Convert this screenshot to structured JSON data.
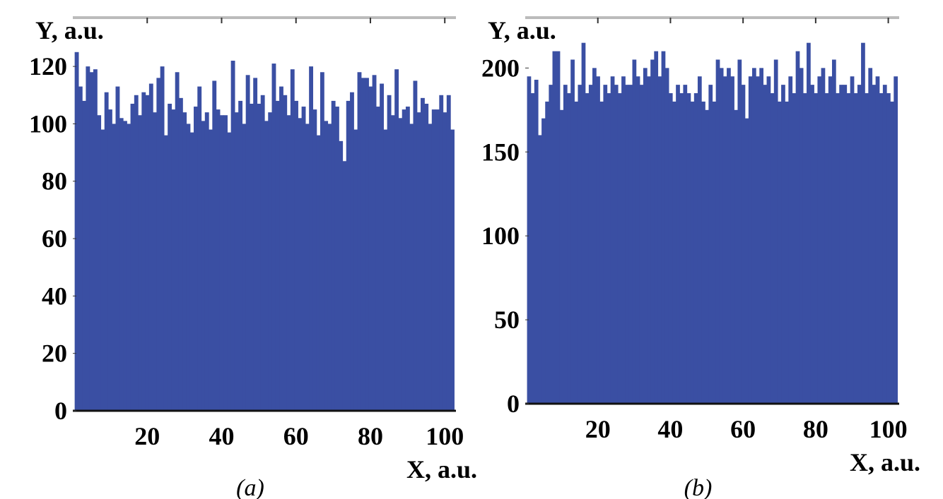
{
  "chart_data": [
    {
      "type": "bar",
      "caption": "(a)",
      "x_label": "X, a.u.",
      "y_label": "Y, a.u.",
      "color": "#3a4fa3",
      "x": [
        1,
        2,
        3,
        4,
        5,
        6,
        7,
        8,
        9,
        10,
        11,
        12,
        13,
        14,
        15,
        16,
        17,
        18,
        19,
        20,
        21,
        22,
        23,
        24,
        25,
        26,
        27,
        28,
        29,
        30,
        31,
        32,
        33,
        34,
        35,
        36,
        37,
        38,
        39,
        40,
        41,
        42,
        43,
        44,
        45,
        46,
        47,
        48,
        49,
        50,
        51,
        52,
        53,
        54,
        55,
        56,
        57,
        58,
        59,
        60,
        61,
        62,
        63,
        64,
        65,
        66,
        67,
        68,
        69,
        70,
        71,
        72,
        73,
        74,
        75,
        76,
        77,
        78,
        79,
        80,
        81,
        82,
        83,
        84,
        85,
        86,
        87,
        88,
        89,
        90,
        91,
        92,
        93,
        94,
        95,
        96,
        97,
        98,
        99,
        100,
        101,
        102
      ],
      "values": [
        125,
        113,
        108,
        120,
        118,
        119,
        103,
        98,
        111,
        105,
        100,
        113,
        102,
        101,
        100,
        107,
        110,
        103,
        111,
        110,
        114,
        104,
        116,
        120,
        96,
        107,
        105,
        118,
        109,
        104,
        100,
        97,
        106,
        113,
        101,
        104,
        98,
        115,
        105,
        103,
        103,
        97,
        122,
        104,
        108,
        100,
        117,
        107,
        116,
        107,
        110,
        101,
        104,
        121,
        108,
        113,
        110,
        103,
        119,
        108,
        102,
        106,
        100,
        120,
        105,
        96,
        118,
        101,
        100,
        108,
        106,
        94,
        87,
        108,
        111,
        98,
        118,
        116,
        116,
        113,
        117,
        106,
        114,
        98,
        110,
        103,
        119,
        102,
        105,
        106,
        100,
        115,
        104,
        109,
        107,
        100,
        105,
        105,
        110,
        104,
        110,
        98
      ],
      "xlim": [
        0,
        103
      ],
      "ylim": [
        0,
        137
      ],
      "xticks": [
        20,
        40,
        60,
        80,
        100
      ],
      "yticks": [
        0,
        20,
        40,
        60,
        80,
        100,
        120
      ]
    },
    {
      "type": "bar",
      "caption": "(b)",
      "x_label": "X, a.u.",
      "y_label": "Y, a.u.",
      "color": "#3a4fa3",
      "x": [
        1,
        2,
        3,
        4,
        5,
        6,
        7,
        8,
        9,
        10,
        11,
        12,
        13,
        14,
        15,
        16,
        17,
        18,
        19,
        20,
        21,
        22,
        23,
        24,
        25,
        26,
        27,
        28,
        29,
        30,
        31,
        32,
        33,
        34,
        35,
        36,
        37,
        38,
        39,
        40,
        41,
        42,
        43,
        44,
        45,
        46,
        47,
        48,
        49,
        50,
        51,
        52,
        53,
        54,
        55,
        56,
        57,
        58,
        59,
        60,
        61,
        62,
        63,
        64,
        65,
        66,
        67,
        68,
        69,
        70,
        71,
        72,
        73,
        74,
        75,
        76,
        77,
        78,
        79,
        80,
        81,
        82,
        83,
        84,
        85,
        86,
        87,
        88,
        89,
        90,
        91,
        92,
        93,
        94,
        95,
        96,
        97,
        98,
        99,
        100,
        101,
        102
      ],
      "values": [
        195,
        185,
        193,
        160,
        170,
        180,
        190,
        210,
        210,
        175,
        190,
        185,
        205,
        180,
        190,
        215,
        185,
        190,
        200,
        195,
        180,
        190,
        185,
        195,
        190,
        185,
        195,
        190,
        190,
        205,
        195,
        190,
        200,
        195,
        205,
        210,
        195,
        210,
        200,
        185,
        180,
        190,
        185,
        190,
        185,
        180,
        185,
        195,
        180,
        175,
        190,
        180,
        205,
        200,
        195,
        200,
        195,
        175,
        205,
        190,
        170,
        195,
        200,
        195,
        200,
        190,
        195,
        185,
        205,
        180,
        190,
        180,
        195,
        185,
        210,
        200,
        185,
        215,
        190,
        185,
        195,
        200,
        185,
        195,
        205,
        185,
        190,
        190,
        185,
        195,
        185,
        190,
        215,
        185,
        200,
        190,
        195,
        185,
        190,
        185,
        180,
        195
      ],
      "xlim": [
        0,
        103
      ],
      "ylim": [
        0,
        230
      ],
      "xticks": [
        20,
        40,
        60,
        80,
        100
      ],
      "yticks": [
        0,
        50,
        100,
        150,
        200
      ]
    }
  ]
}
